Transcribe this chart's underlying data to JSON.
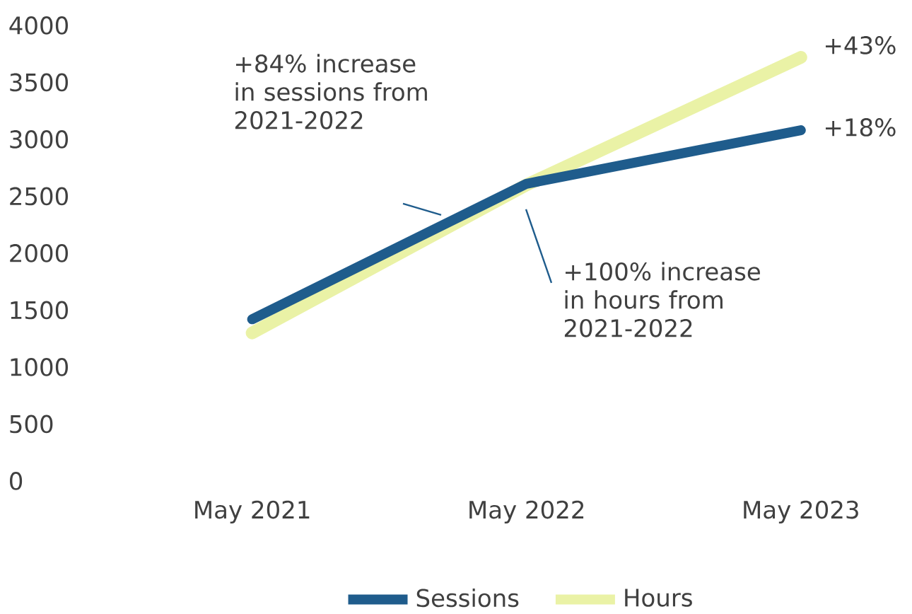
{
  "chart_data": {
    "type": "line",
    "categories": [
      "May 2021",
      "May 2022",
      "May 2023"
    ],
    "series": [
      {
        "name": "Sessions",
        "color": "#1f5c8c",
        "values": [
          1420,
          2610,
          3080
        ]
      },
      {
        "name": "Hours",
        "color": "#eaf2a6",
        "values": [
          1300,
          2600,
          3720
        ]
      }
    ],
    "ylim": [
      0,
      4000
    ],
    "yticks": [
      0,
      500,
      1000,
      1500,
      2000,
      2500,
      3000,
      3500,
      4000
    ],
    "grid": false,
    "legend": "bottom",
    "marker": "none",
    "line_style": "solid",
    "annotations": [
      "+84% increase in sessions from 2021-2022",
      "+100% increase in hours from 2021-2022",
      "+43%",
      "+18%"
    ]
  }
}
